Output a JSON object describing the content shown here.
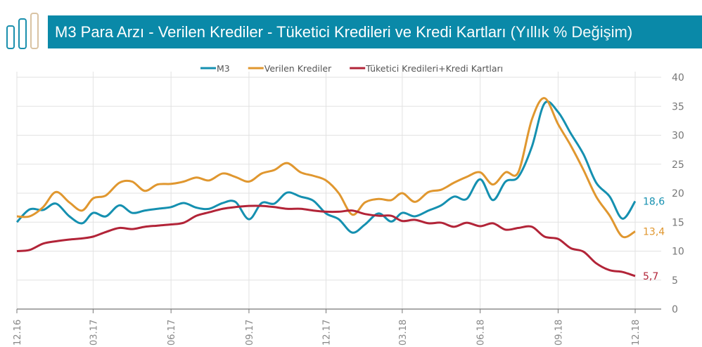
{
  "title": {
    "main": "M3 Para Arzı - Verilen Krediler - Tüketici Kredileri ve Kredi Kartları",
    "suffix": "(Yıllık % Değişim)"
  },
  "colors": {
    "title_bar": "#0a89a8",
    "logo_blue": "#1a8fad",
    "logo_tan": "#d9c3a3"
  },
  "chart_data": {
    "type": "line",
    "title": "M3 Para Arzı - Verilen Krediler - Tüketici Kredileri ve Kredi Kartları (Yıllık % Değişim)",
    "xlabel": "",
    "ylabel": "",
    "ylim": [
      0,
      40
    ],
    "yticks": [
      "0",
      "5",
      "10",
      "15",
      "20",
      "25",
      "30",
      "35",
      "40"
    ],
    "xticks": [
      {
        "date": "2016-12-01",
        "label": "12.16"
      },
      {
        "date": "2017-03-01",
        "label": "03.17"
      },
      {
        "date": "2017-06-01",
        "label": "06.17"
      },
      {
        "date": "2017-09-01",
        "label": "09.17"
      },
      {
        "date": "2017-12-01",
        "label": "12.17"
      },
      {
        "date": "2018-03-01",
        "label": "03.18"
      },
      {
        "date": "2018-06-01",
        "label": "06.18"
      },
      {
        "date": "2018-09-01",
        "label": "09.18"
      },
      {
        "date": "2018-12-01",
        "label": "12.18"
      }
    ],
    "grid": true,
    "legend_position": "top",
    "x": [
      "2016-12-01",
      "2016-12-16",
      "2017-01-01",
      "2017-01-16",
      "2017-02-01",
      "2017-02-16",
      "2017-03-01",
      "2017-03-16",
      "2017-04-01",
      "2017-04-16",
      "2017-05-01",
      "2017-05-16",
      "2017-06-01",
      "2017-06-16",
      "2017-07-01",
      "2017-07-16",
      "2017-08-01",
      "2017-08-16",
      "2017-09-01",
      "2017-09-16",
      "2017-10-01",
      "2017-10-16",
      "2017-11-01",
      "2017-11-16",
      "2017-12-01",
      "2017-12-16",
      "2018-01-01",
      "2018-01-16",
      "2018-02-01",
      "2018-02-16",
      "2018-03-01",
      "2018-03-16",
      "2018-04-01",
      "2018-04-16",
      "2018-05-01",
      "2018-05-16",
      "2018-06-01",
      "2018-06-16",
      "2018-07-01",
      "2018-07-16",
      "2018-08-01",
      "2018-08-16",
      "2018-09-01",
      "2018-09-16",
      "2018-10-01",
      "2018-10-16",
      "2018-11-01",
      "2018-11-16",
      "2018-12-01"
    ],
    "series": [
      {
        "name": "M3",
        "color": "#1590b0",
        "end_label": "18,6",
        "values": [
          15.0,
          17.2,
          17.1,
          18.2,
          16.0,
          14.8,
          16.6,
          16.0,
          17.9,
          16.6,
          17.0,
          17.3,
          17.6,
          18.3,
          17.5,
          17.3,
          18.3,
          18.5,
          15.5,
          18.3,
          18.2,
          20.1,
          19.4,
          18.7,
          16.5,
          15.5,
          13.2,
          14.6,
          16.5,
          15.1,
          16.6,
          16.0,
          17.0,
          17.9,
          19.4,
          19.0,
          22.4,
          18.8,
          22.0,
          22.8,
          28.0,
          35.5,
          34.0,
          30.3,
          26.7,
          21.8,
          19.4,
          15.6,
          18.6
        ]
      },
      {
        "name": "Verilen Krediler",
        "color": "#e0972f",
        "end_label": "13,4",
        "values": [
          16.0,
          16.0,
          17.6,
          20.2,
          18.4,
          17.0,
          19.1,
          19.6,
          21.8,
          22.0,
          20.4,
          21.5,
          21.6,
          22.0,
          22.7,
          22.2,
          23.4,
          22.8,
          22.0,
          23.4,
          24.0,
          25.2,
          23.6,
          23.0,
          22.2,
          20.0,
          16.3,
          18.4,
          19.0,
          18.8,
          20.0,
          18.5,
          20.2,
          20.6,
          21.8,
          22.8,
          23.6,
          21.5,
          23.6,
          23.6,
          32.7,
          36.4,
          31.9,
          28.2,
          24.0,
          19.4,
          16.1,
          12.5,
          13.4
        ]
      },
      {
        "name": "Tüketici Kredileri+Kredi Kartları",
        "color": "#b22438",
        "end_label": "5,7",
        "values": [
          10.0,
          10.2,
          11.3,
          11.7,
          12.0,
          12.2,
          12.5,
          13.3,
          14.0,
          13.8,
          14.2,
          14.4,
          14.6,
          14.9,
          16.1,
          16.7,
          17.3,
          17.6,
          17.8,
          17.8,
          17.6,
          17.3,
          17.3,
          17.0,
          16.8,
          16.8,
          17.0,
          16.4,
          16.1,
          16.1,
          15.2,
          15.4,
          14.8,
          14.9,
          14.2,
          14.9,
          14.3,
          14.8,
          13.7,
          14.0,
          14.2,
          12.5,
          12.1,
          10.5,
          9.9,
          7.9,
          6.7,
          6.4,
          5.7
        ]
      }
    ]
  }
}
